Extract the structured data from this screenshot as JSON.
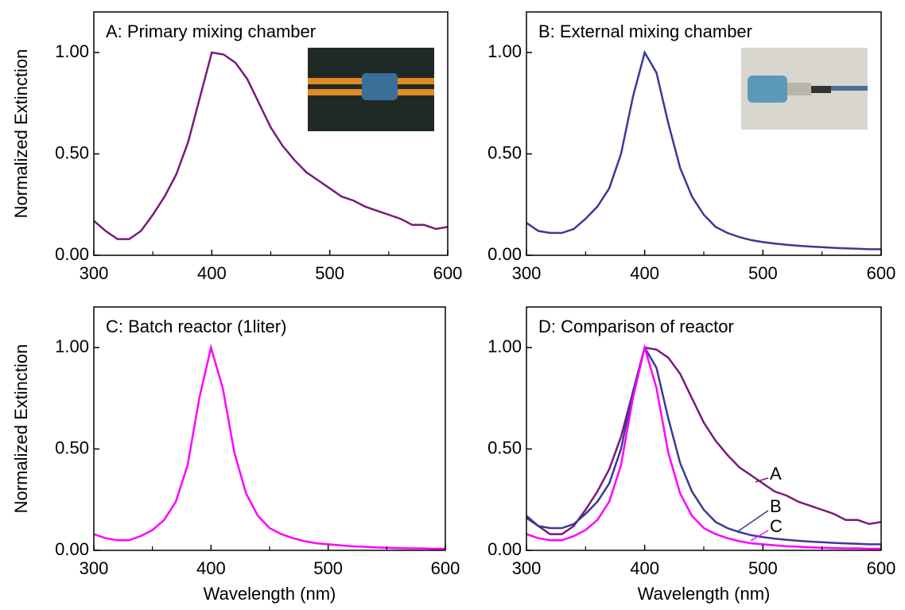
{
  "chart_data": [
    {
      "type": "line",
      "title": "A: Primary mixing chamber",
      "ylabel": "Normalized Extinction",
      "x": [
        300,
        310,
        320,
        330,
        340,
        350,
        360,
        370,
        380,
        390,
        400,
        410,
        420,
        430,
        440,
        450,
        460,
        470,
        480,
        490,
        500,
        510,
        520,
        530,
        540,
        550,
        560,
        570,
        580,
        590,
        600
      ],
      "values": [
        0.17,
        0.12,
        0.08,
        0.08,
        0.12,
        0.2,
        0.29,
        0.4,
        0.56,
        0.78,
        1.0,
        0.99,
        0.95,
        0.87,
        0.75,
        0.63,
        0.54,
        0.47,
        0.41,
        0.37,
        0.33,
        0.29,
        0.27,
        0.24,
        0.22,
        0.2,
        0.18,
        0.15,
        0.15,
        0.13,
        0.14
      ],
      "color": "#7a1a7a",
      "xlim": [
        300,
        600
      ],
      "xticks": [
        300,
        400,
        500,
        600
      ],
      "xminorticks": [
        350,
        450,
        550
      ],
      "ylim": [
        0,
        1.2
      ],
      "yticks": [
        {
          "value": 0,
          "label": "0.00"
        },
        {
          "value": 0.5,
          "label": "0.50"
        },
        {
          "value": 1,
          "label": "1.00"
        }
      ]
    },
    {
      "type": "line",
      "title": "B: External mixing chamber",
      "x": [
        300,
        310,
        320,
        330,
        340,
        350,
        360,
        370,
        380,
        390,
        400,
        410,
        420,
        430,
        440,
        450,
        460,
        470,
        480,
        490,
        500,
        510,
        520,
        530,
        540,
        550,
        560,
        570,
        580,
        590,
        600
      ],
      "values": [
        0.16,
        0.12,
        0.11,
        0.11,
        0.13,
        0.18,
        0.24,
        0.33,
        0.5,
        0.78,
        1.0,
        0.9,
        0.65,
        0.43,
        0.29,
        0.2,
        0.14,
        0.11,
        0.09,
        0.075,
        0.065,
        0.058,
        0.052,
        0.047,
        0.043,
        0.04,
        0.037,
        0.034,
        0.032,
        0.03,
        0.03
      ],
      "color": "#3a3a98",
      "xlim": [
        300,
        600
      ],
      "xticks": [
        300,
        400,
        500,
        600
      ],
      "xminorticks": [
        350,
        450,
        550
      ],
      "ylim": [
        0,
        1.2
      ],
      "yticks": [
        {
          "value": 0,
          "label": "0.00"
        },
        {
          "value": 0.5,
          "label": "0.50"
        },
        {
          "value": 1,
          "label": "1.00"
        }
      ]
    },
    {
      "type": "line",
      "title": "C: Batch reactor (1liter)",
      "ylabel": "Normalized Extinction",
      "xlabel": "Wavelength (nm)",
      "x": [
        300,
        310,
        320,
        330,
        340,
        350,
        360,
        370,
        380,
        390,
        400,
        410,
        420,
        430,
        440,
        450,
        460,
        470,
        480,
        490,
        500,
        510,
        520,
        530,
        540,
        550,
        560,
        570,
        580,
        590,
        600
      ],
      "values": [
        0.08,
        0.06,
        0.05,
        0.05,
        0.07,
        0.1,
        0.15,
        0.24,
        0.42,
        0.75,
        1.0,
        0.8,
        0.48,
        0.28,
        0.17,
        0.11,
        0.08,
        0.06,
        0.045,
        0.035,
        0.03,
        0.025,
        0.02,
        0.018,
        0.015,
        0.013,
        0.011,
        0.01,
        0.01,
        0.008,
        0.008
      ],
      "color": "#ff00ff",
      "xlim": [
        300,
        600
      ],
      "xticks": [
        300,
        400,
        500,
        600
      ],
      "xminorticks": [
        350,
        450,
        550
      ],
      "ylim": [
        0,
        1.2
      ],
      "yticks": [
        {
          "value": 0,
          "label": "0.00"
        },
        {
          "value": 0.5,
          "label": "0.50"
        },
        {
          "value": 1,
          "label": "1.00"
        }
      ]
    },
    {
      "type": "line",
      "title": "D: Comparison of reactor",
      "xlabel": "Wavelength (nm)",
      "x": [
        300,
        310,
        320,
        330,
        340,
        350,
        360,
        370,
        380,
        390,
        400,
        410,
        420,
        430,
        440,
        450,
        460,
        470,
        480,
        490,
        500,
        510,
        520,
        530,
        540,
        550,
        560,
        570,
        580,
        590,
        600
      ],
      "series": [
        {
          "name": "A",
          "color": "#7a1a7a",
          "values": [
            0.17,
            0.12,
            0.08,
            0.08,
            0.12,
            0.2,
            0.29,
            0.4,
            0.56,
            0.78,
            1.0,
            0.99,
            0.95,
            0.87,
            0.75,
            0.63,
            0.54,
            0.47,
            0.41,
            0.37,
            0.33,
            0.29,
            0.27,
            0.24,
            0.22,
            0.2,
            0.18,
            0.15,
            0.15,
            0.13,
            0.14
          ]
        },
        {
          "name": "B",
          "color": "#3a3a98",
          "values": [
            0.16,
            0.12,
            0.11,
            0.11,
            0.13,
            0.18,
            0.24,
            0.33,
            0.5,
            0.78,
            1.0,
            0.9,
            0.65,
            0.43,
            0.29,
            0.2,
            0.14,
            0.11,
            0.09,
            0.075,
            0.065,
            0.058,
            0.052,
            0.047,
            0.043,
            0.04,
            0.037,
            0.034,
            0.032,
            0.03,
            0.03
          ]
        },
        {
          "name": "C",
          "color": "#ff00ff",
          "values": [
            0.08,
            0.06,
            0.05,
            0.05,
            0.07,
            0.1,
            0.15,
            0.24,
            0.42,
            0.75,
            1.0,
            0.8,
            0.48,
            0.28,
            0.17,
            0.11,
            0.08,
            0.06,
            0.045,
            0.035,
            0.03,
            0.025,
            0.02,
            0.018,
            0.015,
            0.013,
            0.011,
            0.01,
            0.01,
            0.008,
            0.008
          ]
        }
      ],
      "xlim": [
        300,
        600
      ],
      "xticks": [
        300,
        400,
        500,
        600
      ],
      "xminorticks": [
        350,
        450,
        550
      ],
      "ylim": [
        0,
        1.2
      ],
      "yticks": [
        {
          "value": 0,
          "label": "0.00"
        },
        {
          "value": 0.5,
          "label": "0.50"
        },
        {
          "value": 1,
          "label": "1.00"
        }
      ]
    }
  ]
}
